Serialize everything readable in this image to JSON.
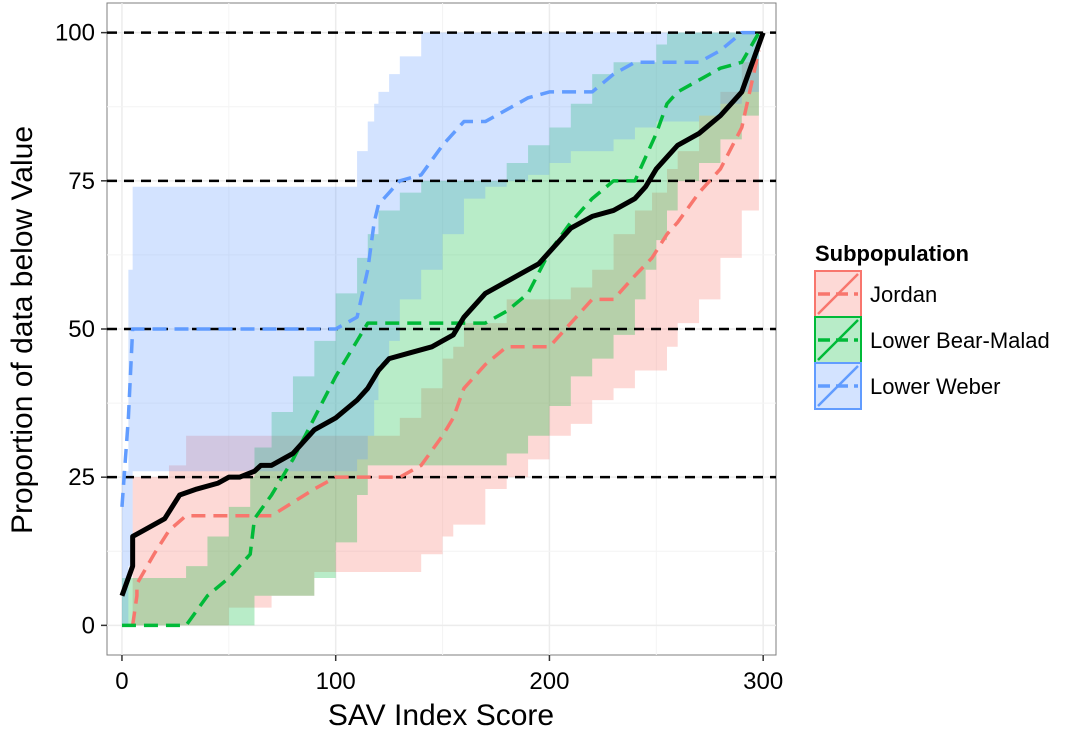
{
  "chart_data": {
    "type": "line",
    "title": "",
    "xlabel": "SAV Index Score",
    "ylabel": "Proportion of data below Value",
    "xlim": [
      -7,
      306
    ],
    "ylim": [
      -5,
      105
    ],
    "x_ticks": [
      0,
      100,
      200,
      300
    ],
    "x_tick_labels": [
      "0",
      "100",
      "200",
      "300"
    ],
    "y_ticks": [
      0,
      25,
      50,
      75,
      100
    ],
    "y_tick_labels": [
      "0",
      "25",
      "50",
      "75",
      "100"
    ],
    "grid": true,
    "reference_lines": [
      25,
      50,
      75,
      100
    ],
    "legend": {
      "title": "Subpopulation",
      "placement": "right"
    },
    "series": [
      {
        "name": "Jordan",
        "color": "#F8766D",
        "style": "dashed",
        "x": [
          5,
          7,
          7,
          15,
          22,
          30,
          50,
          70,
          90,
          100,
          115,
          130,
          140,
          150,
          155,
          160,
          170,
          180,
          190,
          200,
          210,
          220,
          230,
          240,
          248,
          255,
          260,
          270,
          280,
          290,
          298
        ],
        "y": [
          0,
          5,
          7,
          12,
          16,
          18.5,
          18.5,
          18.5,
          23,
          25,
          25,
          25,
          27,
          32,
          35,
          40,
          44,
          47,
          47,
          47,
          51,
          55,
          55,
          59,
          62,
          66,
          68,
          73,
          77,
          84,
          97
        ],
        "band_upper": [
          25,
          25,
          25,
          25,
          27,
          32,
          32,
          32,
          32,
          32,
          32,
          35,
          40,
          45,
          47,
          51,
          51,
          55,
          55,
          55,
          57,
          60,
          66,
          70,
          73,
          77,
          80,
          86,
          90,
          95,
          100
        ],
        "band_lower": [
          0,
          0,
          0,
          0,
          0,
          0,
          3,
          5,
          9,
          9,
          9,
          9,
          12,
          15,
          17,
          17,
          23,
          25,
          28,
          32,
          34,
          38,
          40,
          43,
          43,
          47,
          51,
          55,
          62,
          70,
          86
        ]
      },
      {
        "name": "Lower Bear-Malad",
        "color": "#00BA38",
        "style": "dashed",
        "x": [
          0,
          25,
          30,
          40,
          50,
          60,
          62,
          70,
          80,
          90,
          100,
          110,
          115,
          120,
          130,
          140,
          150,
          160,
          170,
          180,
          190,
          200,
          210,
          220,
          230,
          240,
          245,
          250,
          255,
          260,
          270,
          280,
          290,
          298
        ],
        "y": [
          0,
          0,
          0,
          5,
          8,
          12,
          18,
          22,
          28,
          35,
          42,
          48,
          51,
          51,
          51,
          51,
          51,
          51,
          51,
          53,
          56,
          63,
          68,
          72,
          75,
          75,
          79,
          83,
          88,
          90,
          92,
          94,
          95,
          100
        ],
        "band_upper": [
          8,
          8,
          10,
          15,
          20,
          25,
          30,
          36,
          42,
          48,
          56,
          62,
          66,
          70,
          73,
          75,
          75,
          75,
          75,
          78,
          81,
          84,
          88,
          93,
          95,
          95,
          95,
          98,
          100,
          100,
          100,
          100,
          100,
          100
        ],
        "band_lower": [
          0,
          0,
          0,
          0,
          0,
          0,
          5,
          5,
          5,
          8,
          14,
          22,
          27,
          27,
          27,
          27,
          27,
          27,
          27,
          29,
          32,
          37,
          42,
          45,
          49,
          55,
          60,
          65,
          70,
          75,
          78,
          82,
          86,
          92
        ]
      },
      {
        "name": "Lower Weber",
        "color": "#619CFF",
        "style": "dashed",
        "x": [
          0,
          3,
          5,
          10,
          20,
          40,
          60,
          80,
          100,
          110,
          115,
          118,
          120,
          125,
          130,
          140,
          150,
          160,
          170,
          180,
          190,
          200,
          210,
          220,
          230,
          240,
          250,
          260,
          270,
          280,
          290,
          298
        ],
        "y": [
          20,
          35,
          50,
          50,
          50,
          50,
          50,
          50,
          50,
          52,
          60,
          68,
          71,
          73,
          75,
          76,
          81,
          85,
          85,
          87,
          89,
          90,
          90,
          90,
          93,
          95,
          95,
          95,
          95,
          97,
          100,
          100
        ],
        "band_upper": [
          26,
          60,
          74,
          74,
          74,
          74,
          74,
          74,
          74,
          80,
          85,
          88,
          90,
          93,
          96,
          100,
          100,
          100,
          100,
          100,
          100,
          100,
          100,
          100,
          100,
          100,
          100,
          100,
          100,
          100,
          100,
          100
        ],
        "band_lower": [
          0,
          10,
          26,
          26,
          26,
          26,
          26,
          26,
          26,
          28,
          32,
          38,
          44,
          48,
          55,
          60,
          66,
          72,
          74,
          75,
          76,
          78,
          80,
          80,
          82,
          84,
          85,
          85,
          86,
          88,
          90,
          93
        ]
      },
      {
        "name": "",
        "color": "#000000",
        "style": "solid",
        "x": [
          0,
          5,
          5,
          10,
          20,
          27,
          35,
          45,
          50,
          55,
          62,
          65,
          70,
          80,
          90,
          100,
          110,
          115,
          120,
          125,
          135,
          145,
          150,
          155,
          160,
          170,
          180,
          190,
          195,
          200,
          210,
          220,
          230,
          240,
          245,
          250,
          255,
          260,
          270,
          280,
          290,
          295,
          300
        ],
        "y": [
          5,
          10,
          15,
          16,
          18,
          22,
          23,
          24,
          25,
          25,
          26,
          27,
          27,
          29,
          33,
          35,
          38,
          40,
          43,
          45,
          46,
          47,
          48,
          49,
          52,
          56,
          58,
          60,
          61,
          63,
          67,
          69,
          70,
          72,
          74,
          77,
          79,
          81,
          83,
          86,
          90,
          95,
          100
        ]
      }
    ]
  }
}
